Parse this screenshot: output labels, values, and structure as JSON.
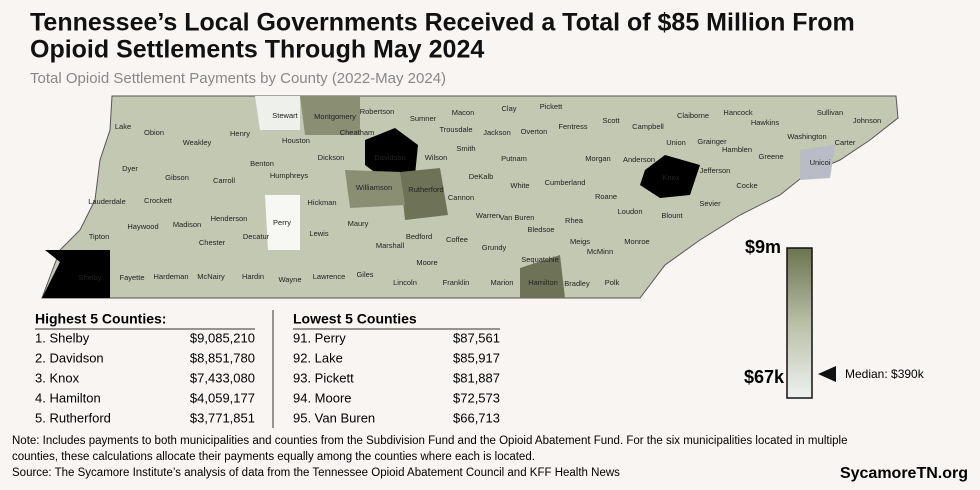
{
  "header": {
    "title_lines": [
      "Tennessee’s Local Governments Received a Total of $85 Million From",
      "Opioid Settlements Through May 2024"
    ],
    "subtitle": "Total Opioid Settlement Payments by County (2022-May 2024)"
  },
  "map": {
    "counties": [
      "Lake",
      "Obion",
      "Weakley",
      "Henry",
      "Stewart",
      "Montgomery",
      "Robertson",
      "Sumner",
      "Macon",
      "Clay",
      "Pickett",
      "Scott",
      "Campbell",
      "Claiborne",
      "Hancock",
      "Hawkins",
      "Sullivan",
      "Johnson",
      "Washington",
      "Carter",
      "Unicoi",
      "Greene",
      "Hamblen",
      "Grainger",
      "Union",
      "Anderson",
      "Knox",
      "Jefferson",
      "Cocke",
      "Sevier",
      "Blount",
      "Loudon",
      "Monroe",
      "McMinn",
      "Polk",
      "Bradley",
      "Hamilton",
      "Meigs",
      "Rhea",
      "Roane",
      "Morgan",
      "Fentress",
      "Overton",
      "Jackson",
      "Trousdale",
      "Smith",
      "Putnam",
      "DeKalb",
      "White",
      "Cumberland",
      "Van Buren",
      "Warren",
      "Cannon",
      "Bledsoe",
      "Sequatchie",
      "Grundy",
      "Marion",
      "Franklin",
      "Coffee",
      "Moore",
      "Lincoln",
      "Bedford",
      "Rutherford",
      "Wilson",
      "Davidson",
      "Cheatham",
      "Williamson",
      "Dickson",
      "Houston",
      "Humphreys",
      "Benton",
      "Hickman",
      "Maury",
      "Marshall",
      "Giles",
      "Lawrence",
      "Lewis",
      "Perry",
      "Wayne",
      "Decatur",
      "Hardin",
      "Carroll",
      "Henderson",
      "Chester",
      "McNairy",
      "Hardeman",
      "Fayette",
      "Shelby",
      "Tipton",
      "Haywood",
      "Madison",
      "Crockett",
      "Gibson",
      "Dyer",
      "Lauderdale"
    ]
  },
  "legend": {
    "max": "$9m",
    "min": "$67k",
    "median": "Median: $390k"
  },
  "highest": {
    "title": "Highest 5 Counties:",
    "rows": [
      [
        "1. Shelby",
        "$9,085,210"
      ],
      [
        "2. Davidson",
        "$8,851,780"
      ],
      [
        "3. Knox",
        "$7,433,080"
      ],
      [
        "4. Hamilton",
        "$4,059,177"
      ],
      [
        "5. Rutherford",
        "$3,771,851"
      ]
    ]
  },
  "lowest": {
    "title": "Lowest 5 Counties",
    "rows": [
      [
        "91. Perry",
        "$87,561"
      ],
      [
        "92. Lake",
        "$85,917"
      ],
      [
        "93. Pickett",
        "$81,887"
      ],
      [
        "94. Moore",
        "$72,573"
      ],
      [
        "95. Van Buren",
        "$66,713"
      ]
    ]
  },
  "footer": {
    "note_lines": [
      "Note: Includes payments to both municipalities and counties from the Subdivision Fund and the Opioid Abatement Fund. For the six municipalities located in multiple",
      "counties, these calculations allocate their payments equally among the counties where each is located."
    ],
    "source": "Source: The Sycamore Institute’s analysis of data from the Tennessee Opioid Abatement Council and KFF Health News",
    "brand": "SycamoreTN.org"
  }
}
